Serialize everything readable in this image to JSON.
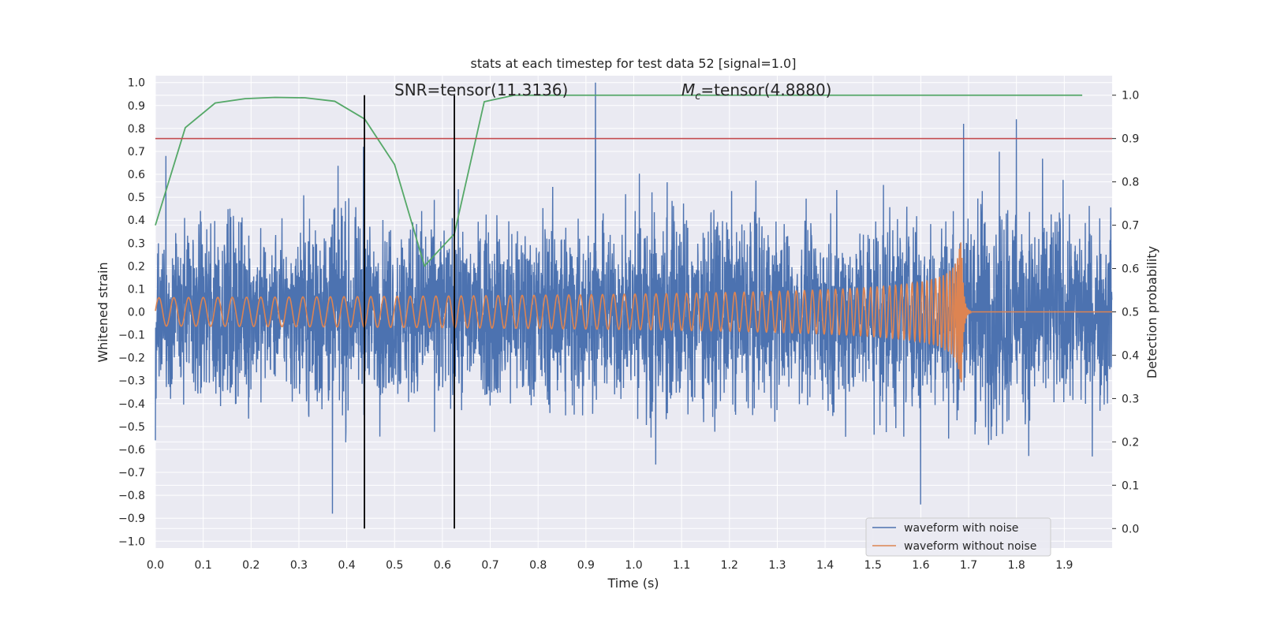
{
  "chart_data": {
    "type": "line",
    "title": "stats at each timestep for test data 52 [signal=1.0]",
    "xlabel": "Time (s)",
    "ylabel": "Whitened strain",
    "y2label": "Detection probability",
    "xlim": [
      0.0,
      2.0
    ],
    "ylim": [
      -1.03,
      1.03
    ],
    "y2lim": [
      -0.045,
      1.045
    ],
    "x_ticks": [
      "0.0",
      "0.1",
      "0.2",
      "0.3",
      "0.4",
      "0.5",
      "0.6",
      "0.7",
      "0.8",
      "0.9",
      "1.0",
      "1.1",
      "1.2",
      "1.3",
      "1.4",
      "1.5",
      "1.6",
      "1.7",
      "1.8",
      "1.9"
    ],
    "y_ticks": [
      "1.0",
      "0.9",
      "0.8",
      "0.7",
      "0.6",
      "0.5",
      "0.4",
      "0.3",
      "0.2",
      "0.1",
      "0.0",
      "−0.1",
      "−0.2",
      "−0.3",
      "−0.4",
      "−0.5",
      "−0.6",
      "−0.7",
      "−0.8",
      "−0.9",
      "−1.0"
    ],
    "y2_ticks": [
      "1.0",
      "0.9",
      "0.8",
      "0.7",
      "0.6",
      "0.5",
      "0.4",
      "0.3",
      "0.2",
      "0.1",
      "0.0"
    ],
    "grid": true,
    "legend_position": "lower-right",
    "series": [
      {
        "name": "waveform with noise",
        "axis": "left",
        "color": "#4c72b0",
        "t_end": 2.0,
        "envelope": [
          0.45,
          0.5,
          0.4,
          0.55,
          0.45,
          0.5,
          0.45,
          0.5,
          0.5,
          0.45,
          0.6,
          0.5,
          0.5,
          0.45,
          0.5,
          0.55,
          0.5,
          0.6,
          0.55,
          0.5
        ],
        "peaks": [
          {
            "x": 0.022,
            "y": 0.68
          },
          {
            "x": 0.37,
            "y": -0.88
          },
          {
            "x": 0.435,
            "y": 0.72
          },
          {
            "x": 0.92,
            "y": 1.0
          },
          {
            "x": 1.6,
            "y": -0.84
          },
          {
            "x": 1.69,
            "y": 0.82
          },
          {
            "x": 1.8,
            "y": 0.84
          },
          {
            "x": 0.0,
            "y": -0.56
          }
        ]
      },
      {
        "name": "waveform without noise",
        "axis": "left",
        "color": "#dd8452",
        "t_merger": 1.685,
        "freq_start": 32,
        "amp_start": 0.062,
        "amp_peak": 0.32
      },
      {
        "name": "",
        "axis": "right",
        "color": "#55a868",
        "x": [
          0.0,
          0.0625,
          0.125,
          0.1875,
          0.25,
          0.3125,
          0.375,
          0.4375,
          0.5,
          0.5625,
          0.625,
          0.6875,
          0.75,
          0.8125,
          0.875,
          0.9375,
          1.0,
          1.0625,
          1.125,
          1.1875,
          1.25,
          1.3125,
          1.375,
          1.4375,
          1.5,
          1.5625,
          1.625,
          1.6875,
          1.75,
          1.8125,
          1.875,
          1.9375
        ],
        "y": [
          0.7,
          0.925,
          0.982,
          0.992,
          0.995,
          0.994,
          0.986,
          0.945,
          0.84,
          0.606,
          0.68,
          0.985,
          1.0,
          1.0,
          1.0,
          1.0,
          1.0,
          1.0,
          1.0,
          1.0,
          1.0,
          1.0,
          1.0,
          1.0,
          1.0,
          1.0,
          1.0,
          1.0,
          1.0,
          1.0,
          1.0,
          1.0
        ]
      }
    ],
    "threshold_line": {
      "axis": "right",
      "y": 0.9,
      "color": "#c44e52"
    },
    "vlines": [
      {
        "x": 0.437,
        "y_from": 0.0,
        "y_to": 1.0,
        "color": "#000000"
      },
      {
        "x": 0.625,
        "y_from": 0.0,
        "y_to": 1.0,
        "color": "#000000"
      }
    ],
    "annotations": {
      "snr": "SNR=tensor(11.3136)",
      "mc_symbol": "M",
      "mc_subscript": "c",
      "mc_value": "=tensor(4.8880)"
    },
    "legend": [
      {
        "label": "waveform with noise",
        "color": "#4c72b0"
      },
      {
        "label": "waveform without noise",
        "color": "#dd8452"
      }
    ],
    "colors": {
      "plot_background": "#eaeaf2",
      "grid": "#ffffff",
      "text": "#262626"
    }
  }
}
